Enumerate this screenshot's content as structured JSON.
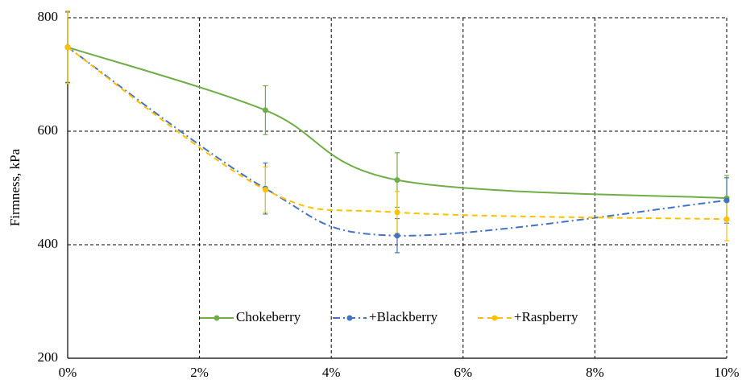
{
  "chart_data": {
    "type": "line",
    "smooth": true,
    "y_label": "Firmness, kPa",
    "x": [
      0,
      3,
      5,
      10
    ],
    "xlim": [
      0,
      10
    ],
    "xticks": [
      {
        "value": 0,
        "label": "0%"
      },
      {
        "value": 2,
        "label": "2%"
      },
      {
        "value": 4,
        "label": "4%"
      },
      {
        "value": 6,
        "label": "6%"
      },
      {
        "value": 8,
        "label": "8%"
      },
      {
        "value": 10,
        "label": "10%"
      }
    ],
    "ylim": [
      200,
      800
    ],
    "yticks": [
      200,
      400,
      600,
      800
    ],
    "grid": true,
    "legend": "bottom",
    "series": [
      {
        "name": "Chokeberry",
        "color": "#70ad47",
        "dash": "solid",
        "values": [
          748,
          637,
          514,
          482
        ],
        "errors": [
          62,
          43,
          48,
          40
        ]
      },
      {
        "name": "+Blackberry",
        "color": "#4472c4",
        "dash": "dashdot",
        "values": [
          748,
          499,
          416,
          478
        ],
        "errors": [
          62,
          45,
          30,
          40
        ]
      },
      {
        "name": "+Raspberry",
        "color": "#ffc000",
        "dash": "dash",
        "values": [
          748,
          497,
          457,
          445
        ],
        "errors": [
          64,
          40,
          37,
          38
        ]
      }
    ]
  }
}
